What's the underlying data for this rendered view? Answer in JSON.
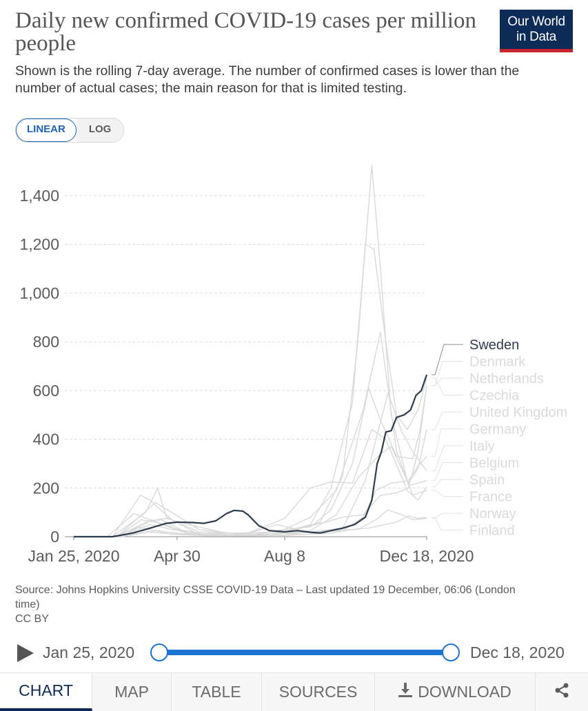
{
  "header": {
    "title": "Daily new confirmed COVID-19 cases per million people",
    "subtitle": "Shown is the rolling 7-day average. The number of confirmed cases is lower than the number of actual cases; the main reason for that is limited testing.",
    "logo_line1": "Our World",
    "logo_line2": "in Data"
  },
  "scale_toggle": {
    "linear": "LINEAR",
    "log": "LOG",
    "active": "linear"
  },
  "chart_data": {
    "type": "line",
    "title": "Daily new confirmed COVID-19 cases per million people",
    "ylim": [
      0,
      1500
    ],
    "yticks": [
      0,
      200,
      400,
      600,
      800,
      1000,
      1200,
      1400
    ],
    "ytick_labels": [
      "0",
      "200",
      "400",
      "600",
      "800",
      "1,000",
      "1,200",
      "1,400"
    ],
    "xlim": [
      "2020-01-25",
      "2020-12-18"
    ],
    "xticks": [
      "2020-01-25",
      "2020-04-30",
      "2020-08-08",
      "2020-12-18"
    ],
    "xtick_labels": [
      "Jan 25, 2020",
      "Apr 30",
      "Aug 8",
      "Dec 18, 2020"
    ],
    "grid": true,
    "legend": "right, labels at line ends",
    "highlight_color": "#2d3b4e",
    "muted_color": "#d9d9d9",
    "series": [
      {
        "name": "Sweden",
        "highlight": true,
        "points": [
          [
            "2020-01-25",
            0
          ],
          [
            "2020-03-01",
            0
          ],
          [
            "2020-03-20",
            15
          ],
          [
            "2020-04-05",
            35
          ],
          [
            "2020-04-20",
            55
          ],
          [
            "2020-05-01",
            60
          ],
          [
            "2020-05-15",
            58
          ],
          [
            "2020-05-25",
            55
          ],
          [
            "2020-06-05",
            65
          ],
          [
            "2020-06-15",
            95
          ],
          [
            "2020-06-22",
            108
          ],
          [
            "2020-06-30",
            105
          ],
          [
            "2020-07-05",
            90
          ],
          [
            "2020-07-15",
            45
          ],
          [
            "2020-07-25",
            25
          ],
          [
            "2020-08-08",
            20
          ],
          [
            "2020-08-20",
            25
          ],
          [
            "2020-09-01",
            18
          ],
          [
            "2020-09-10",
            15
          ],
          [
            "2020-09-20",
            25
          ],
          [
            "2020-10-01",
            35
          ],
          [
            "2020-10-12",
            50
          ],
          [
            "2020-10-22",
            80
          ],
          [
            "2020-10-28",
            150
          ],
          [
            "2020-11-02",
            300
          ],
          [
            "2020-11-06",
            350
          ],
          [
            "2020-11-10",
            430
          ],
          [
            "2020-11-15",
            435
          ],
          [
            "2020-11-20",
            490
          ],
          [
            "2020-11-27",
            500
          ],
          [
            "2020-12-03",
            520
          ],
          [
            "2020-12-08",
            580
          ],
          [
            "2020-12-13",
            600
          ],
          [
            "2020-12-18",
            665
          ]
        ]
      },
      {
        "name": "Denmark",
        "points": [
          [
            "2020-01-25",
            0
          ],
          [
            "2020-03-10",
            0
          ],
          [
            "2020-04-05",
            50
          ],
          [
            "2020-04-25",
            30
          ],
          [
            "2020-06-01",
            8
          ],
          [
            "2020-07-15",
            3
          ],
          [
            "2020-08-08",
            20
          ],
          [
            "2020-09-15",
            60
          ],
          [
            "2020-10-01",
            80
          ],
          [
            "2020-10-20",
            90
          ],
          [
            "2020-11-05",
            170
          ],
          [
            "2020-11-20",
            180
          ],
          [
            "2020-12-01",
            200
          ],
          [
            "2020-12-10",
            350
          ],
          [
            "2020-12-18",
            620
          ]
        ]
      },
      {
        "name": "Netherlands",
        "points": [
          [
            "2020-01-25",
            0
          ],
          [
            "2020-03-05",
            0
          ],
          [
            "2020-04-01",
            60
          ],
          [
            "2020-04-15",
            70
          ],
          [
            "2020-05-10",
            15
          ],
          [
            "2020-07-01",
            3
          ],
          [
            "2020-08-08",
            30
          ],
          [
            "2020-09-01",
            40
          ],
          [
            "2020-09-20",
            110
          ],
          [
            "2020-10-10",
            300
          ],
          [
            "2020-10-25",
            610
          ],
          [
            "2020-11-05",
            480
          ],
          [
            "2020-11-20",
            330
          ],
          [
            "2020-12-05",
            320
          ],
          [
            "2020-12-12",
            440
          ],
          [
            "2020-12-18",
            620
          ]
        ]
      },
      {
        "name": "Czechia",
        "points": [
          [
            "2020-01-25",
            0
          ],
          [
            "2020-03-10",
            0
          ],
          [
            "2020-04-01",
            20
          ],
          [
            "2020-05-01",
            10
          ],
          [
            "2020-06-25",
            15
          ],
          [
            "2020-08-08",
            20
          ],
          [
            "2020-09-01",
            50
          ],
          [
            "2020-09-20",
            200
          ],
          [
            "2020-10-10",
            550
          ],
          [
            "2020-10-22",
            1200
          ],
          [
            "2020-10-30",
            1180
          ],
          [
            "2020-11-10",
            800
          ],
          [
            "2020-11-20",
            500
          ],
          [
            "2020-11-30",
            440
          ],
          [
            "2020-12-10",
            520
          ],
          [
            "2020-12-18",
            650
          ]
        ]
      },
      {
        "name": "United Kingdom",
        "points": [
          [
            "2020-01-25",
            0
          ],
          [
            "2020-03-10",
            0
          ],
          [
            "2020-04-05",
            65
          ],
          [
            "2020-04-20",
            75
          ],
          [
            "2020-05-15",
            45
          ],
          [
            "2020-06-15",
            15
          ],
          [
            "2020-07-15",
            9
          ],
          [
            "2020-08-08",
            15
          ],
          [
            "2020-09-01",
            25
          ],
          [
            "2020-09-25",
            90
          ],
          [
            "2020-10-15",
            240
          ],
          [
            "2020-11-05",
            340
          ],
          [
            "2020-11-15",
            370
          ],
          [
            "2020-12-01",
            220
          ],
          [
            "2020-12-10",
            280
          ],
          [
            "2020-12-18",
            440
          ]
        ]
      },
      {
        "name": "Germany",
        "points": [
          [
            "2020-01-25",
            0
          ],
          [
            "2020-03-05",
            0
          ],
          [
            "2020-03-28",
            70
          ],
          [
            "2020-04-10",
            60
          ],
          [
            "2020-05-10",
            12
          ],
          [
            "2020-07-01",
            5
          ],
          [
            "2020-08-08",
            12
          ],
          [
            "2020-09-01",
            18
          ],
          [
            "2020-10-01",
            25
          ],
          [
            "2020-10-20",
            80
          ],
          [
            "2020-11-01",
            190
          ],
          [
            "2020-11-15",
            220
          ],
          [
            "2020-12-01",
            230
          ],
          [
            "2020-12-10",
            290
          ],
          [
            "2020-12-18",
            330
          ]
        ]
      },
      {
        "name": "Italy",
        "points": [
          [
            "2020-01-25",
            0
          ],
          [
            "2020-02-25",
            0
          ],
          [
            "2020-03-21",
            95
          ],
          [
            "2020-04-05",
            70
          ],
          [
            "2020-05-01",
            30
          ],
          [
            "2020-06-01",
            6
          ],
          [
            "2020-07-20",
            4
          ],
          [
            "2020-08-08",
            6
          ],
          [
            "2020-09-01",
            20
          ],
          [
            "2020-10-01",
            35
          ],
          [
            "2020-10-22",
            230
          ],
          [
            "2020-11-12",
            590
          ],
          [
            "2020-11-25",
            430
          ],
          [
            "2020-12-05",
            350
          ],
          [
            "2020-12-18",
            270
          ]
        ]
      },
      {
        "name": "Belgium",
        "points": [
          [
            "2020-01-25",
            0
          ],
          [
            "2020-03-05",
            0
          ],
          [
            "2020-04-10",
            140
          ],
          [
            "2020-04-25",
            100
          ],
          [
            "2020-05-20",
            30
          ],
          [
            "2020-07-01",
            8
          ],
          [
            "2020-08-01",
            50
          ],
          [
            "2020-08-20",
            30
          ],
          [
            "2020-09-10",
            60
          ],
          [
            "2020-10-01",
            250
          ],
          [
            "2020-10-15",
            800
          ],
          [
            "2020-10-28",
            1525
          ],
          [
            "2020-11-05",
            1100
          ],
          [
            "2020-11-15",
            500
          ],
          [
            "2020-12-01",
            210
          ],
          [
            "2020-12-18",
            230
          ]
        ]
      },
      {
        "name": "Spain",
        "points": [
          [
            "2020-01-25",
            0
          ],
          [
            "2020-03-01",
            0
          ],
          [
            "2020-03-27",
            170
          ],
          [
            "2020-04-05",
            150
          ],
          [
            "2020-04-25",
            70
          ],
          [
            "2020-05-20",
            10
          ],
          [
            "2020-07-01",
            8
          ],
          [
            "2020-08-08",
            75
          ],
          [
            "2020-09-01",
            200
          ],
          [
            "2020-09-20",
            225
          ],
          [
            "2020-10-10",
            220
          ],
          [
            "2020-10-28",
            440
          ],
          [
            "2020-11-10",
            400
          ],
          [
            "2020-11-30",
            190
          ],
          [
            "2020-12-10",
            150
          ],
          [
            "2020-12-18",
            205
          ]
        ]
      },
      {
        "name": "France",
        "points": [
          [
            "2020-01-25",
            0
          ],
          [
            "2020-03-01",
            0
          ],
          [
            "2020-04-01",
            100
          ],
          [
            "2020-04-12",
            200
          ],
          [
            "2020-04-20",
            80
          ],
          [
            "2020-05-20",
            20
          ],
          [
            "2020-07-15",
            10
          ],
          [
            "2020-08-08",
            30
          ],
          [
            "2020-09-01",
            80
          ],
          [
            "2020-09-25",
            190
          ],
          [
            "2020-10-20",
            520
          ],
          [
            "2020-11-05",
            840
          ],
          [
            "2020-11-20",
            350
          ],
          [
            "2020-12-05",
            170
          ],
          [
            "2020-12-18",
            190
          ]
        ]
      },
      {
        "name": "Norway",
        "points": [
          [
            "2020-01-25",
            0
          ],
          [
            "2020-03-05",
            0
          ],
          [
            "2020-03-25",
            40
          ],
          [
            "2020-04-25",
            10
          ],
          [
            "2020-06-01",
            3
          ],
          [
            "2020-08-08",
            12
          ],
          [
            "2020-09-20",
            25
          ],
          [
            "2020-10-15",
            30
          ],
          [
            "2020-11-01",
            70
          ],
          [
            "2020-11-12",
            110
          ],
          [
            "2020-11-25",
            90
          ],
          [
            "2020-12-05",
            70
          ],
          [
            "2020-12-18",
            75
          ]
        ]
      },
      {
        "name": "Finland",
        "points": [
          [
            "2020-01-25",
            0
          ],
          [
            "2020-03-10",
            0
          ],
          [
            "2020-04-10",
            25
          ],
          [
            "2020-05-10",
            10
          ],
          [
            "2020-06-15",
            3
          ],
          [
            "2020-08-08",
            5
          ],
          [
            "2020-09-20",
            15
          ],
          [
            "2020-10-10",
            30
          ],
          [
            "2020-10-25",
            35
          ],
          [
            "2020-11-20",
            60
          ],
          [
            "2020-12-01",
            85
          ],
          [
            "2020-12-10",
            75
          ],
          [
            "2020-12-18",
            80
          ]
        ]
      }
    ]
  },
  "source": {
    "line1": "Source: Johns Hopkins University CSSE COVID-19 Data – Last updated 19 December, 06:06 (London time)",
    "line2": "CC BY"
  },
  "timeline": {
    "start_label": "Jan 25, 2020",
    "end_label": "Dec 18, 2020"
  },
  "tabs": {
    "chart": "CHART",
    "map": "MAP",
    "table": "TABLE",
    "sources": "SOURCES",
    "download": "DOWNLOAD"
  },
  "icons": {
    "play": "play-icon",
    "download": "download-icon",
    "share": "share-icon"
  }
}
